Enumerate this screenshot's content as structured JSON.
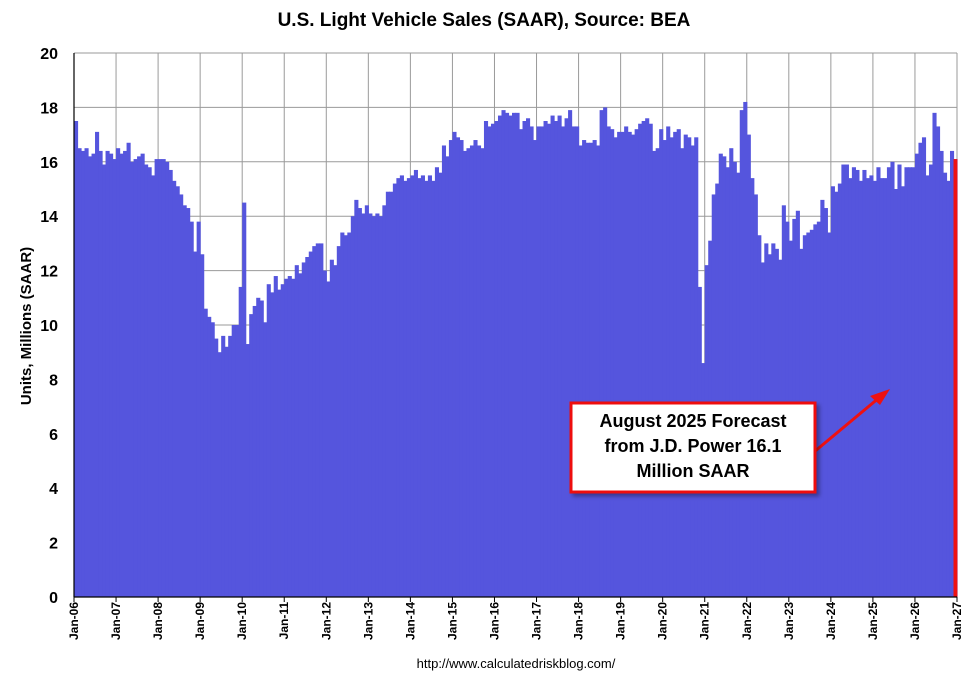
{
  "chart_data": {
    "type": "bar",
    "title": "U.S. Light Vehicle Sales (SAAR), Source: BEA",
    "ylabel": "Units, Millions (SAAR)",
    "xlabel": "",
    "source_note": "http://www.calculatedriskblog.com/",
    "ylim": [
      0,
      20
    ],
    "yticks": [
      "0",
      "2",
      "4",
      "6",
      "8",
      "10",
      "12",
      "14",
      "16",
      "18",
      "20"
    ],
    "xticks": [
      "Jan-06",
      "Jan-07",
      "Jan-08",
      "Jan-09",
      "Jan-10",
      "Jan-11",
      "Jan-12",
      "Jan-13",
      "Jan-14",
      "Jan-15",
      "Jan-16",
      "Jan-17",
      "Jan-18",
      "Jan-19",
      "Jan-20",
      "Jan-21",
      "Jan-22",
      "Jan-23",
      "Jan-24",
      "Jan-25",
      "Jan-26",
      "Jan-27"
    ],
    "x_start": "Jan-06",
    "grid": true,
    "colors": {
      "bars": "#5555dd",
      "forecast": "#ee1111",
      "annotation_border": "#ee1111"
    },
    "values": [
      17.5,
      16.5,
      16.4,
      16.5,
      16.2,
      16.3,
      17.1,
      16.4,
      15.9,
      16.4,
      16.3,
      16.1,
      16.5,
      16.3,
      16.4,
      16.7,
      16.0,
      16.1,
      16.2,
      16.3,
      15.9,
      15.8,
      15.5,
      16.1,
      16.1,
      16.1,
      16.0,
      15.7,
      15.3,
      15.1,
      14.8,
      14.4,
      14.3,
      13.8,
      12.7,
      13.8,
      12.6,
      10.6,
      10.3,
      10.1,
      9.5,
      9.0,
      9.6,
      9.2,
      9.6,
      10.0,
      10.0,
      11.4,
      14.5,
      9.3,
      10.4,
      10.7,
      11.0,
      10.9,
      10.1,
      11.5,
      11.2,
      11.8,
      11.3,
      11.5,
      11.7,
      11.8,
      11.7,
      12.2,
      11.9,
      12.3,
      12.5,
      12.7,
      12.9,
      13.0,
      13.0,
      12.0,
      11.6,
      12.4,
      12.2,
      12.9,
      13.4,
      13.3,
      13.4,
      14.0,
      14.6,
      14.3,
      14.1,
      14.4,
      14.1,
      14.0,
      14.1,
      14.0,
      14.4,
      14.9,
      14.9,
      15.2,
      15.4,
      15.5,
      15.3,
      15.4,
      15.5,
      15.7,
      15.4,
      15.5,
      15.3,
      15.5,
      15.3,
      15.8,
      15.6,
      16.6,
      16.2,
      16.8,
      17.1,
      16.9,
      16.8,
      16.4,
      16.5,
      16.6,
      16.8,
      16.6,
      16.5,
      17.5,
      17.3,
      17.4,
      17.5,
      17.7,
      17.9,
      17.8,
      17.7,
      17.8,
      17.8,
      17.2,
      17.5,
      17.6,
      17.3,
      16.8,
      17.3,
      17.3,
      17.5,
      17.4,
      17.7,
      17.5,
      17.7,
      17.3,
      17.6,
      17.9,
      17.3,
      17.3,
      16.6,
      16.8,
      16.7,
      16.7,
      16.8,
      16.6,
      17.9,
      18.0,
      17.3,
      17.2,
      16.9,
      17.1,
      17.1,
      17.3,
      17.1,
      17.0,
      17.2,
      17.4,
      17.5,
      17.6,
      17.4,
      16.4,
      16.5,
      17.2,
      16.8,
      17.3,
      16.9,
      17.1,
      17.2,
      16.5,
      17.0,
      16.9,
      16.6,
      16.9,
      11.4,
      8.6,
      12.2,
      13.1,
      14.8,
      15.2,
      16.3,
      16.2,
      15.8,
      16.5,
      16.0,
      15.6,
      17.9,
      18.2,
      17.0,
      15.4,
      14.8,
      13.3,
      12.3,
      13.0,
      12.6,
      13.0,
      12.8,
      12.4,
      14.4,
      13.8,
      13.1,
      13.9,
      14.2,
      12.8,
      13.3,
      13.4,
      13.5,
      13.7,
      13.8,
      14.6,
      14.3,
      13.4,
      15.1,
      14.9,
      15.2,
      15.9,
      15.9,
      15.4,
      15.8,
      15.7,
      15.3,
      15.7,
      15.4,
      15.5,
      15.3,
      15.8,
      15.4,
      15.4,
      15.8,
      16.0,
      15.0,
      15.9,
      15.1,
      15.8,
      15.8,
      15.8,
      16.3,
      16.7,
      16.9,
      15.5,
      15.9,
      17.8,
      17.3,
      16.4,
      15.6,
      15.3,
      16.4,
      16.1
    ],
    "forecast": {
      "period": "Aug-25",
      "value": 16.1
    },
    "annotation": {
      "lines": [
        "August 2025 Forecast",
        "from J.D. Power 16.1",
        "Million SAAR"
      ]
    }
  }
}
